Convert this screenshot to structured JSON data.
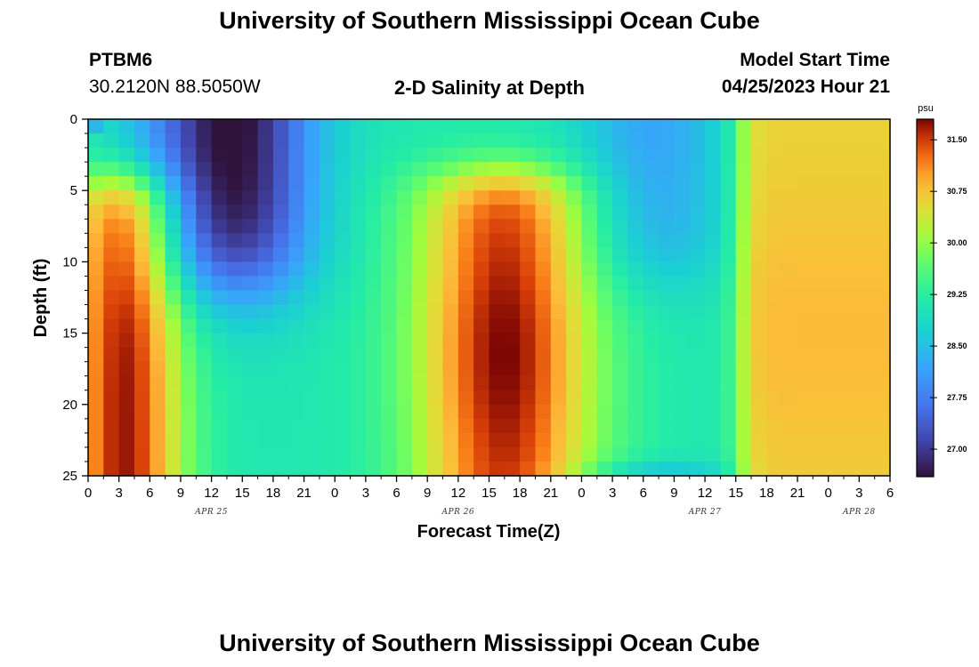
{
  "page": {
    "title_top": "University of Southern Mississippi Ocean Cube",
    "title_bottom": "University of Southern Mississippi Ocean Cube",
    "station_id": "PTBM6",
    "station_coords": "30.2120N  88.5050W",
    "plot_subtitle": "2-D Salinity at Depth",
    "model_start_label": "Model Start Time",
    "model_start_value": "04/25/2023 Hour 21"
  },
  "chart_data": {
    "type": "heatmap",
    "title": "2-D Salinity at Depth",
    "xlabel": "Forecast Time(Z)",
    "ylabel": "Depth (ft)",
    "x_hours_range": [
      0,
      78
    ],
    "y_range": [
      0,
      25
    ],
    "x_tick_labels": [
      "0",
      "3",
      "6",
      "9",
      "12",
      "15",
      "18",
      "21",
      "0",
      "3",
      "6",
      "9",
      "12",
      "15",
      "18",
      "21",
      "0",
      "3",
      "6",
      "9",
      "12",
      "15",
      "18",
      "21",
      "0",
      "3",
      "6"
    ],
    "date_labels": [
      {
        "text": "APR 25",
        "hour": 12
      },
      {
        "text": "APR 26",
        "hour": 36
      },
      {
        "text": "APR 27",
        "hour": 60
      },
      {
        "text": "APR 28",
        "hour": 75
      }
    ],
    "y_tick_labels": [
      "0",
      "5",
      "10",
      "15",
      "20",
      "25"
    ],
    "y_tick_values": [
      0,
      5,
      10,
      15,
      20,
      25
    ],
    "colorbar": {
      "unit": "psu",
      "range": [
        26.6,
        31.8
      ],
      "tick_labels": [
        "31.50",
        "30.75",
        "30.00",
        "29.25",
        "28.50",
        "27.75",
        "27.00"
      ],
      "tick_values": [
        31.5,
        30.75,
        30.0,
        29.25,
        28.5,
        27.75,
        27.0
      ]
    },
    "grid": {
      "x_step_hours": 1.5,
      "y_step_ft": 1
    },
    "features": [
      {
        "name": "low surface layer",
        "hours": [
          3,
          24
        ],
        "depth_ft": [
          0,
          14
        ],
        "min_psu": 26.8
      },
      {
        "name": "high core 1",
        "hours": [
          0,
          11
        ],
        "depth_ft": [
          4,
          25
        ],
        "max_psu": 31.7
      },
      {
        "name": "high core 2",
        "hours": [
          28,
          51
        ],
        "depth_ft": [
          3,
          25
        ],
        "max_psu": 31.8
      },
      {
        "name": "low mid layer",
        "hours": [
          48,
          64
        ],
        "depth_ft": [
          0,
          12
        ],
        "min_psu": 28.3
      },
      {
        "name": "high plateau",
        "hours": [
          63,
          78
        ],
        "depth_ft": [
          0,
          25
        ],
        "max_psu": 31.0
      }
    ]
  }
}
